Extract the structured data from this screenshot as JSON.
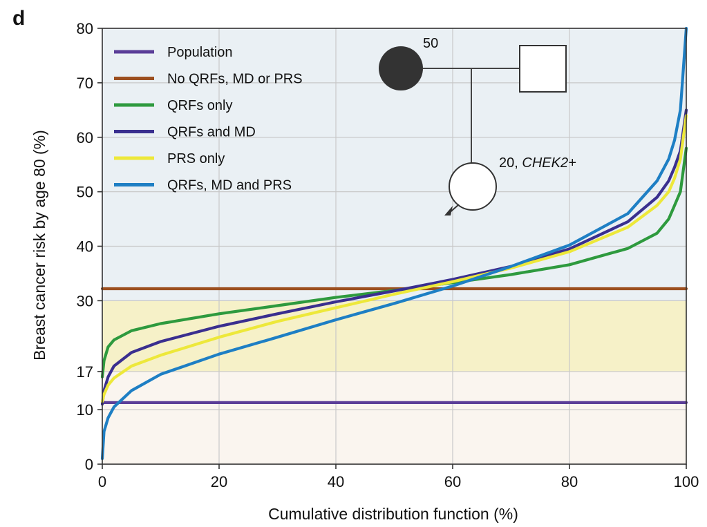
{
  "panel_label": "d",
  "pedigree": {
    "mother_label": "50",
    "proband_age": "20,",
    "proband_gene": "CHEK2+"
  },
  "chart_data": {
    "type": "line",
    "xlabel": "Cumulative distribution function (%)",
    "ylabel": "Breast cancer risk by age 80 (%)",
    "xlim": [
      0,
      100
    ],
    "ylim": [
      0,
      80
    ],
    "x_ticks": [
      0,
      20,
      40,
      60,
      80,
      100
    ],
    "y_ticks": [
      0,
      10,
      17,
      30,
      40,
      50,
      60,
      70,
      80
    ],
    "grid": true,
    "legend_position": "top-left",
    "risk_bands": [
      {
        "from": 0,
        "to": 17,
        "color": "#faf5ef"
      },
      {
        "from": 17,
        "to": 30,
        "color": "#f6f1c8"
      },
      {
        "from": 30,
        "to": 80,
        "color": "#eaf0f4"
      }
    ],
    "series": [
      {
        "name": "Population",
        "color": "#5b3e98",
        "x": [
          0,
          100
        ],
        "y": [
          11.3,
          11.3
        ]
      },
      {
        "name": "No QRFs, MD or PRS",
        "color": "#9c4f1f",
        "x": [
          0,
          100
        ],
        "y": [
          32.2,
          32.2
        ]
      },
      {
        "name": "QRFs only",
        "color": "#2e9a3e",
        "x": [
          0,
          0.3,
          1,
          2,
          5,
          10,
          20,
          30,
          40,
          50,
          60,
          70,
          80,
          90,
          95,
          97,
          98,
          99,
          100
        ],
        "y": [
          16,
          19,
          21.5,
          22.8,
          24.5,
          25.8,
          27.6,
          29.1,
          30.6,
          31.9,
          33.3,
          34.8,
          36.6,
          39.6,
          42.4,
          45,
          47.5,
          50,
          58
        ]
      },
      {
        "name": "QRFs and MD",
        "color": "#3a2f8f",
        "x": [
          0,
          0.3,
          1,
          2,
          5,
          10,
          20,
          30,
          40,
          50,
          60,
          70,
          80,
          90,
          95,
          97,
          98,
          99,
          100
        ],
        "y": [
          11,
          13.5,
          16,
          18,
          20.5,
          22.5,
          25.3,
          27.6,
          29.8,
          31.8,
          33.9,
          36.3,
          39.5,
          44.5,
          49,
          52,
          54.5,
          57.5,
          65
        ]
      },
      {
        "name": "PRS only",
        "color": "#ede83a",
        "x": [
          0,
          0.3,
          1,
          2,
          5,
          10,
          20,
          30,
          40,
          50,
          60,
          70,
          80,
          90,
          95,
          97,
          98,
          99,
          100
        ],
        "y": [
          11.5,
          12.8,
          14.5,
          15.8,
          18,
          20,
          23.3,
          26.2,
          28.7,
          31.2,
          33.5,
          36,
          39,
          43.5,
          47.5,
          50,
          52.5,
          56,
          64
        ]
      },
      {
        "name": "QRFs, MD and PRS",
        "color": "#1e7fc4",
        "x": [
          0,
          0.3,
          1,
          2,
          5,
          10,
          20,
          30,
          40,
          50,
          60,
          70,
          80,
          90,
          95,
          97,
          98,
          99,
          100
        ],
        "y": [
          1,
          6,
          8.5,
          10.5,
          13.5,
          16.5,
          20.2,
          23.3,
          26.5,
          29.5,
          32.7,
          36.3,
          40.2,
          46,
          52,
          56,
          59.5,
          65,
          80
        ]
      }
    ]
  }
}
